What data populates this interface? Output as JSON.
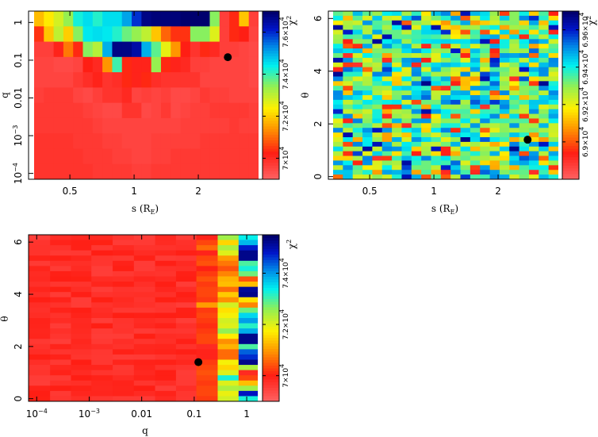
{
  "chart_data": [
    {
      "type": "heatmap",
      "xlabel": "s (R",
      "xlabel_sub": "E",
      "xlabel_close": ")",
      "ylabel": "q",
      "xscale": "log",
      "yscale": "log",
      "xlim": [
        0.32,
        4.0
      ],
      "ylim": [
        7e-05,
        2.0
      ],
      "xticks": [
        0.5,
        1,
        2
      ],
      "xtick_labels": [
        "0.5",
        "1",
        "2"
      ],
      "yticks": [
        0.0001,
        0.001,
        0.01,
        0.1,
        1
      ],
      "ytick_labels": [
        {
          "base": "10",
          "exp": "−4"
        },
        {
          "base": "10",
          "exp": "−3"
        },
        {
          "base": "0.01",
          "exp": ""
        },
        {
          "base": "0.1",
          "exp": ""
        },
        {
          "base": "1",
          "exp": ""
        }
      ],
      "colorbar": {
        "label": "χ",
        "label_exp": "2",
        "range": [
          69000,
          77000
        ],
        "ticks": [
          70000,
          72000,
          74000,
          76000
        ],
        "tick_labels": [
          {
            "mant": "7×10",
            "exp": "4"
          },
          {
            "mant": "7.2×10",
            "exp": "4"
          },
          {
            "mant": "7.4×10",
            "exp": "4"
          },
          {
            "mant": "7.6×10",
            "exp": "4"
          }
        ]
      },
      "best_fit": {
        "s": 2.75,
        "q": 0.12
      },
      "z": [
        [
          71800,
          72300,
          72800,
          73400,
          74300,
          74600,
          74200,
          74600,
          74600,
          75100,
          76000,
          76800,
          76900,
          76900,
          76900,
          77000,
          77000,
          77000,
          73500,
          69600,
          70300,
          71900,
          69600
        ],
        [
          70400,
          71900,
          73000,
          72000,
          73500,
          74500,
          74600,
          74500,
          74200,
          73700,
          73400,
          73000,
          71900,
          70900,
          70400,
          70400,
          73500,
          73500,
          72700,
          69600,
          70300,
          70200,
          69500
        ],
        [
          69600,
          69600,
          70100,
          71100,
          70300,
          73500,
          73100,
          75000,
          76800,
          76800,
          76500,
          75000,
          73800,
          72600,
          71400,
          70200,
          69800,
          70300,
          70000,
          69600,
          69600,
          69500,
          69400
        ],
        [
          69500,
          69500,
          69400,
          69400,
          69500,
          70200,
          70000,
          71400,
          74000,
          70300,
          70100,
          70100,
          73400,
          70300,
          70100,
          70000,
          69600,
          69600,
          69500,
          69500,
          69500,
          69500,
          69400
        ],
        [
          69500,
          69500,
          69500,
          69500,
          69700,
          69900,
          70100,
          69800,
          69900,
          70300,
          70100,
          70300,
          69900,
          69800,
          69800,
          69800,
          69800,
          69500,
          69500,
          69500,
          69500,
          69500,
          69400
        ],
        [
          69600,
          69700,
          69700,
          69700,
          69500,
          69400,
          69600,
          69800,
          69800,
          70000,
          69500,
          69600,
          69500,
          69600,
          69400,
          69400,
          69500,
          69700,
          69600,
          69600,
          69500,
          69500,
          69500
        ],
        [
          69700,
          69700,
          69700,
          69700,
          69700,
          69600,
          69500,
          69400,
          69400,
          69800,
          69800,
          69400,
          69500,
          69700,
          69400,
          69500,
          69600,
          69600,
          69700,
          69700,
          69700,
          69700,
          69600
        ],
        [
          69700,
          69700,
          69700,
          69700,
          69700,
          69700,
          69600,
          69500,
          69500,
          69500,
          69500,
          69500,
          69500,
          69500,
          69500,
          69600,
          69600,
          69600,
          69600,
          69600,
          69700,
          69600,
          69600
        ],
        [
          69800,
          69800,
          69800,
          69800,
          69700,
          69700,
          69700,
          69600,
          69600,
          69500,
          69500,
          69500,
          69600,
          69600,
          69600,
          69600,
          69600,
          69700,
          69700,
          69700,
          69700,
          69700,
          69700
        ],
        [
          69800,
          69800,
          69800,
          69800,
          69800,
          69700,
          69700,
          69700,
          69600,
          69600,
          69500,
          69500,
          69600,
          69600,
          69700,
          69700,
          69700,
          69700,
          69700,
          69700,
          69700,
          69700,
          69700
        ],
        [
          69800,
          69800,
          69800,
          69800,
          69800,
          69800,
          69700,
          69700,
          69700,
          69700,
          69600,
          69600,
          69700,
          69700,
          69700,
          69700,
          69700,
          69700,
          69700,
          69700,
          69700,
          69700,
          69700
        ]
      ]
    },
    {
      "type": "heatmap",
      "xlabel": "s (R",
      "xlabel_sub": "E",
      "xlabel_close": ")",
      "ylabel": "θ",
      "xscale": "log",
      "yscale": "linear",
      "xlim": [
        0.32,
        4.0
      ],
      "ylim": [
        -0.1,
        6.28
      ],
      "xticks": [
        0.5,
        1,
        2
      ],
      "xtick_labels": [
        "0.5",
        "1",
        "2"
      ],
      "yticks": [
        0,
        2,
        4,
        6
      ],
      "ytick_labels": [
        "0",
        "2",
        "4",
        "6"
      ],
      "colorbar": {
        "label": "χ",
        "label_exp": "2",
        "range": [
          68880,
          68970
        ],
        "ticks": [
          68900,
          68920,
          68940,
          68960
        ],
        "tick_labels": [
          {
            "mant": "6.9×10",
            "exp": "4"
          },
          {
            "mant": "6.92×10",
            "exp": "4"
          },
          {
            "mant": "6.94×10",
            "exp": "4"
          },
          {
            "mant": "6.96×10",
            "exp": "4"
          }
        ]
      },
      "best_fit": {
        "s": 2.75,
        "theta": 1.4
      },
      "rows": 36,
      "cols": 23,
      "seed": 7
    },
    {
      "type": "heatmap",
      "xlabel": "q",
      "ylabel": "θ",
      "xscale": "log",
      "yscale": "linear",
      "xlim": [
        7e-05,
        2.0
      ],
      "ylim": [
        -0.1,
        6.28
      ],
      "xticks": [
        0.0001,
        0.001,
        0.01,
        0.1,
        1
      ],
      "xtick_labels": [
        {
          "base": "10",
          "exp": "−4"
        },
        {
          "base": "10",
          "exp": "−3"
        },
        {
          "base": "0.01",
          "exp": ""
        },
        {
          "base": "0.1",
          "exp": ""
        },
        {
          "base": "1",
          "exp": ""
        }
      ],
      "yticks": [
        0,
        2,
        4,
        6
      ],
      "ytick_labels": [
        "0",
        "2",
        "4",
        "6"
      ],
      "colorbar": {
        "label": "χ",
        "label_exp": "2",
        "range": [
          69000,
          75500
        ],
        "ticks": [
          70000,
          72000,
          74000
        ],
        "tick_labels": [
          {
            "mant": "7×10",
            "exp": "4"
          },
          {
            "mant": "7.2×10",
            "exp": "4"
          },
          {
            "mant": "7.4×10",
            "exp": "4"
          }
        ]
      },
      "best_fit": {
        "q": 0.12,
        "theta": 1.4
      },
      "col_edges_q": [
        7e-05,
        0.00018,
        0.00045,
        0.0011,
        0.0028,
        0.0071,
        0.018,
        0.045,
        0.11,
        0.28,
        0.7,
        1.6
      ],
      "rows": 32,
      "high_q_cols": {
        "col_0p11": [
          69900,
          70300,
          70600,
          69900,
          70300,
          70400,
          70000,
          70200,
          70400,
          70200,
          70300,
          70300,
          70200,
          71000,
          70200,
          70300,
          70200,
          70100,
          70200,
          70300,
          70300,
          69800,
          69900,
          69900,
          70200,
          70300,
          70400,
          70300,
          70200,
          70300,
          70300,
          70200
        ],
        "col_0p28": [
          72500,
          71500,
          72400,
          72000,
          71000,
          70700,
          70400,
          70800,
          71200,
          71300,
          70600,
          71400,
          70900,
          72100,
          71600,
          71800,
          72100,
          72000,
          72600,
          71700,
          70900,
          71200,
          70600,
          70600,
          71800,
          71500,
          72000,
          73300,
          72000,
          72400,
          71900,
          72100
        ],
        "col_0p7": [
          73400,
          73800,
          74800,
          75300,
          75300,
          73000,
          73300,
          72800,
          70400,
          71300,
          75200,
          75300,
          71600,
          70800,
          72800,
          73600,
          74000,
          73200,
          73900,
          75300,
          75300,
          73000,
          74400,
          74700,
          75300,
          72400,
          69800,
          70300,
          71300,
          72500,
          74900,
          73300
        ]
      }
    }
  ]
}
